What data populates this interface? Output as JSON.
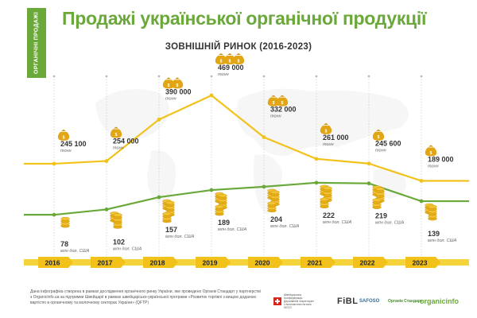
{
  "header": {
    "side_tab": "ОРГАНІЧНІ ПРОДАЖІ",
    "title": "Продажі української органічної продукції",
    "subtitle": "ЗОВНІШНІЙ РИНОК (2016-2023)"
  },
  "chart_data": {
    "type": "line",
    "years": [
      "2016",
      "2017",
      "2018",
      "2019",
      "2020",
      "2021",
      "2022",
      "2023"
    ],
    "series": [
      {
        "name": "тонн",
        "values": [
          245100,
          254000,
          390000,
          469000,
          332000,
          261000,
          245600,
          189000
        ],
        "labels": [
          "245 100",
          "254 000",
          "390 000",
          "469 000",
          "332 000",
          "261 000",
          "245 600",
          "189 000"
        ],
        "unit": "тонн",
        "bags": [
          1,
          1,
          2,
          3,
          2,
          1,
          1,
          1
        ],
        "color": "#f2c21a"
      },
      {
        "name": "млн дол. США",
        "values": [
          78,
          102,
          157,
          189,
          204,
          222,
          219,
          139
        ],
        "labels": [
          "78",
          "102",
          "157",
          "189",
          "204",
          "222",
          "219",
          "139"
        ],
        "unit": "млн дол. США",
        "coin_stacks": [
          1,
          2,
          3,
          3,
          3,
          3,
          3,
          2
        ],
        "color": "#6aa83a"
      }
    ]
  },
  "footer": {
    "text_1": "Дана інфографіка створена в рамках дослідження органічного ринку України, яке проведено Органік Стандарт у партнерстві",
    "text_2": "з OrganicInfo.ua за підтримки Швейцарії в рамках швейцарсько-української програми «Розвиток торгівлі з вищою доданою",
    "text_3": "вартістю в органічному та молочному секторах України» (QFTP)",
    "swiss_text": "Швейцарська Конфедерація · Державний секретаріат з економічних питань SECO",
    "partners": [
      "FiBL",
      "SAFOSO",
      "Органік Стандарт",
      "organicinfo"
    ]
  }
}
